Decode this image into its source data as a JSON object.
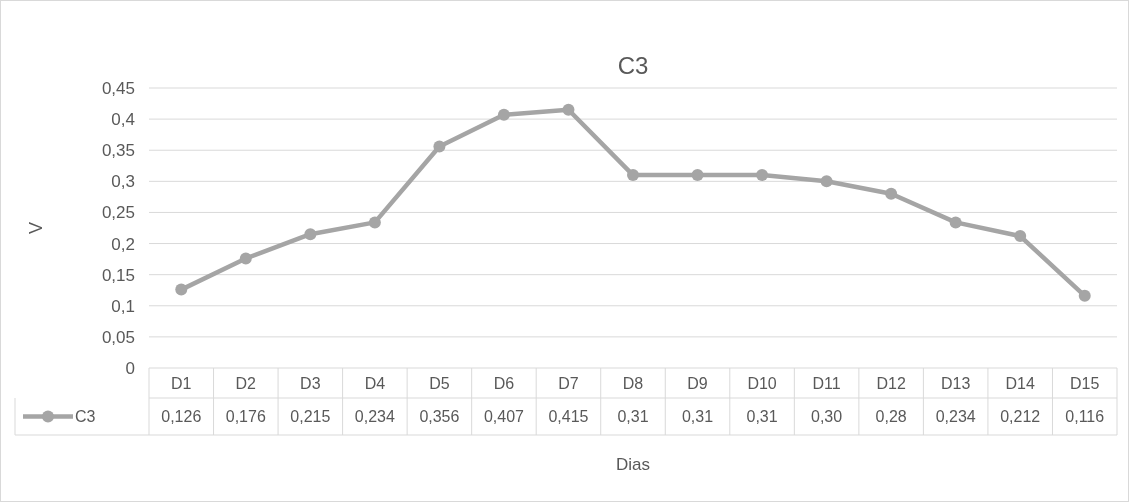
{
  "chart_data": {
    "type": "line",
    "title": "C3",
    "xlabel": "Dias",
    "ylabel": "V",
    "categories": [
      "D1",
      "D2",
      "D3",
      "D4",
      "D5",
      "D6",
      "D7",
      "D8",
      "D9",
      "D10",
      "D11",
      "D12",
      "D13",
      "D14",
      "D15"
    ],
    "series": [
      {
        "name": "C3",
        "color": "#a5a5a5",
        "values": [
          0.126,
          0.176,
          0.215,
          0.234,
          0.356,
          0.407,
          0.415,
          0.31,
          0.31,
          0.31,
          0.3,
          0.28,
          0.234,
          0.212,
          0.116
        ],
        "value_labels": [
          "0,126",
          "0,176",
          "0,215",
          "0,234",
          "0,356",
          "0,407",
          "0,415",
          "0,31",
          "0,31",
          "0,31",
          "0,30",
          "0,28",
          "0,234",
          "0,212",
          "0,116"
        ]
      }
    ],
    "ylim": [
      0,
      0.45
    ],
    "yticks": [
      {
        "value": 0,
        "label": "0"
      },
      {
        "value": 0.05,
        "label": "0,05"
      },
      {
        "value": 0.1,
        "label": "0,1"
      },
      {
        "value": 0.15,
        "label": "0,15"
      },
      {
        "value": 0.2,
        "label": "0,2"
      },
      {
        "value": 0.25,
        "label": "0,25"
      },
      {
        "value": 0.3,
        "label": "0,3"
      },
      {
        "value": 0.35,
        "label": "0,35"
      },
      {
        "value": 0.4,
        "label": "0,4"
      },
      {
        "value": 0.45,
        "label": "0,45"
      }
    ],
    "grid": "y",
    "legend": "bottom left",
    "marker": "circle",
    "line_style": "solid"
  }
}
